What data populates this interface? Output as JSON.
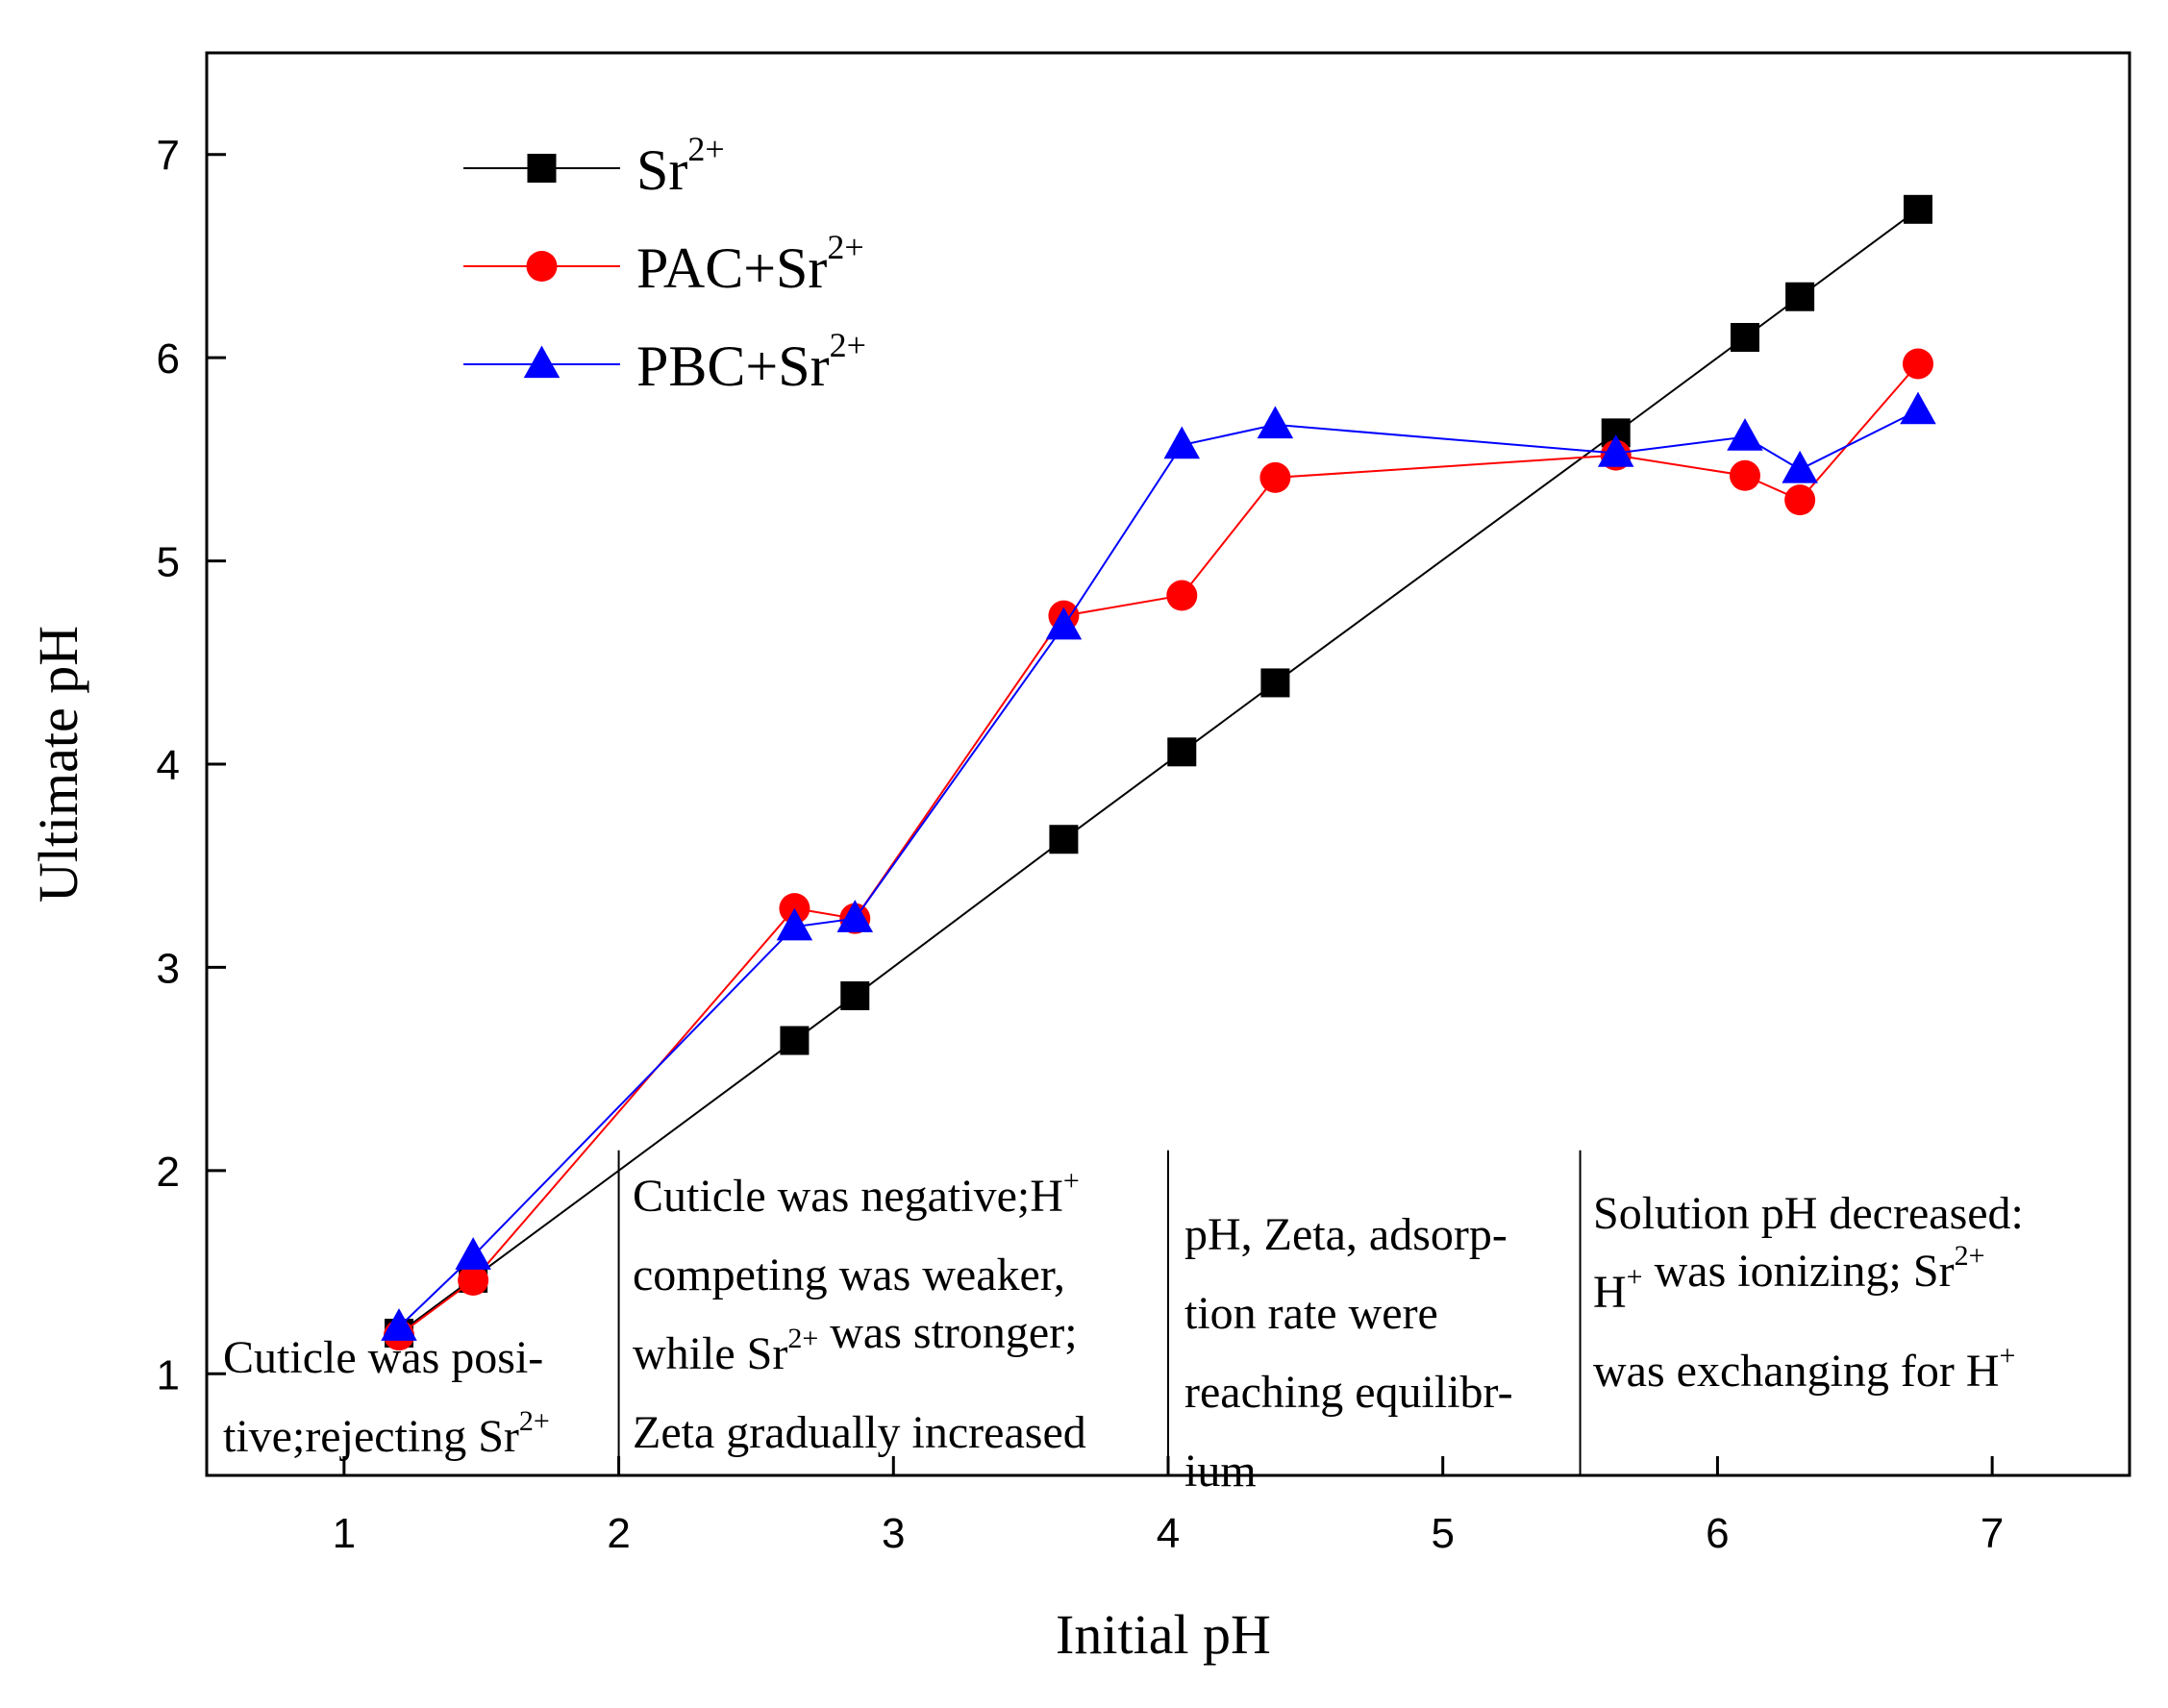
{
  "chart_data": {
    "type": "line",
    "xlabel": "Initial pH",
    "ylabel": "Ultimate pH",
    "xlim": [
      0.5,
      7.5
    ],
    "ylim": [
      0.5,
      7.5
    ],
    "xticks": [
      "1",
      "2",
      "3",
      "4",
      "5",
      "6",
      "7"
    ],
    "yticks": [
      "1",
      "2",
      "3",
      "4",
      "5",
      "6",
      "7"
    ],
    "series": [
      {
        "name": "Sr",
        "sup": "2+",
        "color": "#000000",
        "marker": "square",
        "x": [
          1.2,
          1.47,
          2.64,
          2.86,
          3.62,
          4.05,
          4.39,
          5.63,
          6.1,
          6.3,
          6.73
        ],
        "y": [
          1.2,
          1.47,
          2.64,
          2.86,
          3.63,
          4.06,
          4.4,
          5.63,
          6.1,
          6.3,
          6.73
        ]
      },
      {
        "name": "PAC+Sr",
        "sup": "2+",
        "color": "#ff0000",
        "marker": "circle",
        "x": [
          1.2,
          1.47,
          2.64,
          2.86,
          3.62,
          4.05,
          4.39,
          5.63,
          6.1,
          6.3,
          6.73
        ],
        "y": [
          1.19,
          1.46,
          3.29,
          3.24,
          4.73,
          4.83,
          5.41,
          5.52,
          5.42,
          5.3,
          5.97
        ]
      },
      {
        "name": "PBC+Sr",
        "sup": "2+",
        "color": "#0000ff",
        "marker": "triangle",
        "x": [
          1.2,
          1.47,
          2.64,
          2.86,
          3.62,
          4.05,
          4.39,
          5.63,
          6.1,
          6.3,
          6.73
        ],
        "y": [
          1.23,
          1.58,
          3.2,
          3.24,
          4.68,
          5.57,
          5.67,
          5.53,
          5.61,
          5.45,
          5.74
        ]
      }
    ],
    "region_dividers_x": [
      2.0,
      4.0,
      5.5
    ],
    "annotations": [
      {
        "name": "region-1",
        "lines": [
          [
            {
              "t": "Cuticle was posi-"
            }
          ],
          [
            {
              "t": "tive;rejecting Sr"
            },
            {
              "t": "2+",
              "sup": true
            }
          ]
        ]
      },
      {
        "name": "region-2",
        "lines": [
          [
            {
              "t": "Cuticle was negative;H"
            },
            {
              "t": "+",
              "sup": true
            }
          ],
          [
            {
              "t": "competing was weaker,"
            }
          ],
          [
            {
              "t": "while Sr"
            },
            {
              "t": "2+",
              "sup": true
            },
            {
              "t": " was stronger;"
            }
          ],
          [
            {
              "t": "Zeta gradually increased"
            }
          ]
        ]
      },
      {
        "name": "region-3",
        "lines": [
          [
            {
              "t": "pH, Zeta, adsorp-"
            }
          ],
          [
            {
              "t": "tion rate were"
            }
          ],
          [
            {
              "t": "reaching equilibr-"
            }
          ],
          [
            {
              "t": "ium"
            }
          ]
        ]
      },
      {
        "name": "region-4",
        "lines": [
          [
            {
              "t": "Solution pH decreased:"
            }
          ],
          [
            {
              "t": "H"
            },
            {
              "t": "+",
              "sup": true
            },
            {
              "t": " was ionizing; Sr"
            },
            {
              "t": "2+",
              "sup": true
            }
          ],
          [
            {
              "t": "was exchanging for H"
            },
            {
              "t": "+",
              "sup": true
            }
          ]
        ]
      }
    ]
  }
}
